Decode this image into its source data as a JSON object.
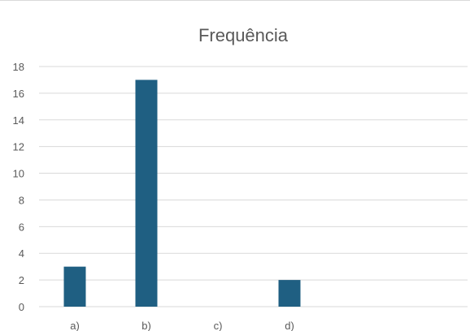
{
  "chart_data": {
    "type": "bar",
    "title": "Frequência",
    "categories": [
      "a)",
      "b)",
      "c)",
      "d)"
    ],
    "series": [
      {
        "values": [
          3,
          17,
          0,
          2
        ],
        "color": "#1f5f82"
      }
    ],
    "ylim": [
      0,
      18
    ],
    "yticks": [
      0,
      2,
      4,
      6,
      8,
      10,
      12,
      14,
      16,
      18
    ],
    "grid": true,
    "legend": "none",
    "gridline_color": "#d9d9d9",
    "text_color": "#595959"
  }
}
